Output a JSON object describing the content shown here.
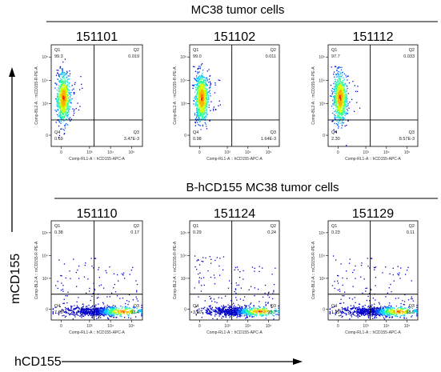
{
  "global_axes": {
    "x_label": "hCD155",
    "y_label": "mCD155"
  },
  "chart_data": [
    {
      "type": "scatter",
      "section": "MC38 tumor cells",
      "title": "151101",
      "xlabel": "Comp-RL1-A :: hCD155-APC-A",
      "ylabel": "Comp-BL2-A :: mCD155-R-PE-A",
      "x_ticks": [
        "0",
        "10³",
        "10⁴",
        "10⁵"
      ],
      "y_ticks": [
        "0",
        "10³",
        "10⁴",
        "10⁵"
      ],
      "quadrants": {
        "Q1": "99.3",
        "Q2": "0.019",
        "Q3": "3.47E-3",
        "Q4": "0.69"
      },
      "population": "mCD155+ hCD155-"
    },
    {
      "type": "scatter",
      "section": "MC38 tumor cells",
      "title": "151102",
      "xlabel": "Comp-RL1-A :: hCD155-APC-A",
      "ylabel": "Comp-BL2-A :: mCD155-R-PE-A",
      "x_ticks": [
        "0",
        "10³",
        "10⁴",
        "10⁵"
      ],
      "y_ticks": [
        "0",
        "10³",
        "10⁴",
        "10⁵"
      ],
      "quadrants": {
        "Q1": "99.0",
        "Q2": "0.011",
        "Q3": "1.64E-3",
        "Q4": "0.98"
      },
      "population": "mCD155+ hCD155-"
    },
    {
      "type": "scatter",
      "section": "MC38 tumor cells",
      "title": "151112",
      "xlabel": "Comp-RL1-A :: hCD155-APC-A",
      "ylabel": "Comp-BL2-A :: mCD155-R-PE-A",
      "x_ticks": [
        "0",
        "10³",
        "10⁴",
        "10⁵"
      ],
      "y_ticks": [
        "0",
        "10³",
        "10⁴",
        "10⁵"
      ],
      "quadrants": {
        "Q1": "97.7",
        "Q2": "0.033",
        "Q3": "8.57E-3",
        "Q4": "2.30"
      },
      "population": "mCD155+ hCD155-"
    },
    {
      "type": "scatter",
      "section": "B-hCD155 MC38 tumor cells",
      "title": "151110",
      "xlabel": "Comp-RL1-A :: hCD155-APC-A",
      "ylabel": "Comp-BL2-A :: mCD155-R-PE-A",
      "x_ticks": [
        "0",
        "10³",
        "10⁴",
        "10⁵"
      ],
      "y_ticks": [
        "0",
        "10³",
        "10⁴",
        "10⁵"
      ],
      "quadrants": {
        "Q1": "0.38",
        "Q2": "0.17",
        "Q3": "92.4",
        "Q4": "7.08"
      },
      "population": "mCD155- hCD155+"
    },
    {
      "type": "scatter",
      "section": "B-hCD155 MC38 tumor cells",
      "title": "151124",
      "xlabel": "Comp-RL1-A :: hCD155-APC-A",
      "ylabel": "Comp-BL2-A :: mCD155-R-PE-A",
      "x_ticks": [
        "0",
        "10³",
        "10⁴",
        "10⁵"
      ],
      "y_ticks": [
        "0",
        "10³",
        "10⁴",
        "10⁵"
      ],
      "quadrants": {
        "Q1": "0.29",
        "Q2": "0.24",
        "Q3": "95.7",
        "Q4": "3.80"
      },
      "population": "mCD155- hCD155+"
    },
    {
      "type": "scatter",
      "section": "B-hCD155 MC38 tumor cells",
      "title": "151129",
      "xlabel": "Comp-RL1-A :: hCD155-APC-A",
      "ylabel": "Comp-BL2-A :: mCD155-R-PE-A",
      "x_ticks": [
        "0",
        "10³",
        "10⁴",
        "10⁵"
      ],
      "y_ticks": [
        "0",
        "10³",
        "10⁴",
        "10⁵"
      ],
      "quadrants": {
        "Q1": "0.23",
        "Q2": "0.11",
        "Q3": "98.5",
        "Q4": "1.19"
      },
      "population": "mCD155- hCD155+"
    }
  ],
  "colors": {
    "density": [
      "#0000c8",
      "#0050ff",
      "#00c8ff",
      "#30ff90",
      "#d0ff00",
      "#ffb000",
      "#ff2000"
    ]
  }
}
